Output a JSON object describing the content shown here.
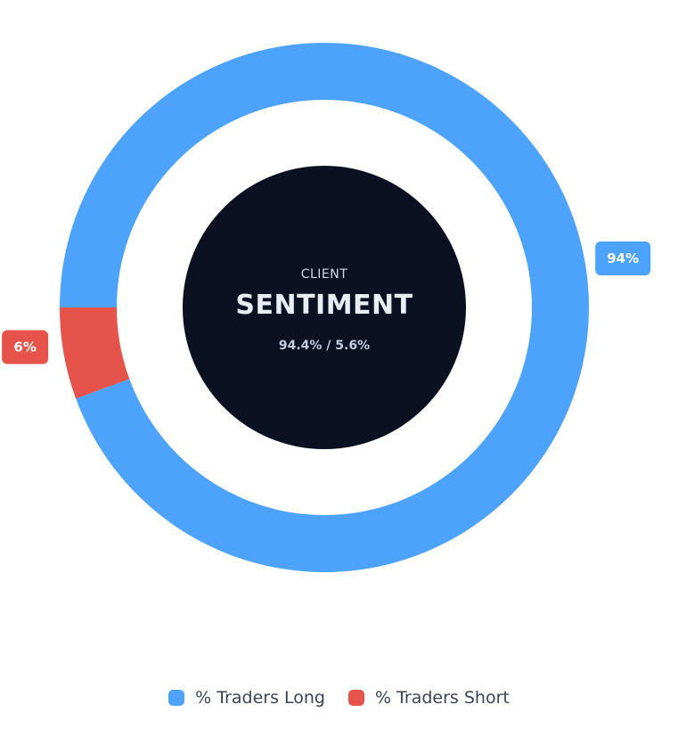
{
  "center": {
    "kicker": "CLIENT",
    "title": "SENTIMENT",
    "ratio": "94.4% / 5.6%"
  },
  "colors": {
    "long": "#4da3fb",
    "short": "#e5534b",
    "center": "#0b1120"
  },
  "legend": [
    {
      "label": "% Traders Long",
      "color": "#4da3fb"
    },
    {
      "label": "% Traders Short",
      "color": "#e5534b"
    }
  ],
  "chart_data": {
    "type": "pie",
    "variant": "donut",
    "categories": [
      "% Traders Long",
      "% Traders Short"
    ],
    "values": [
      94.4,
      5.6
    ],
    "data_labels": [
      "94%",
      "6%"
    ],
    "legend_position": "bottom"
  }
}
